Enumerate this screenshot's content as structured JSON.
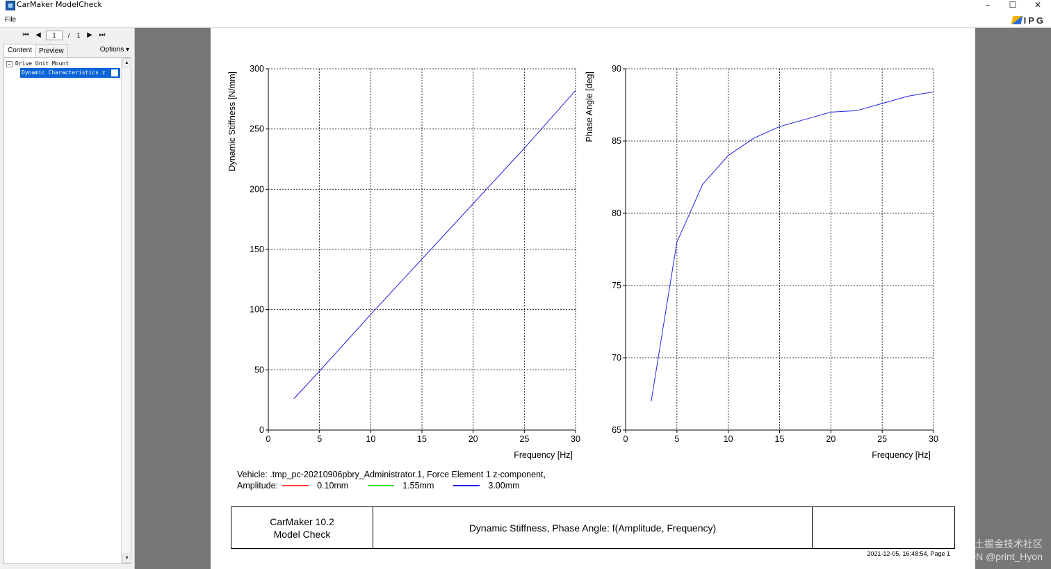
{
  "window": {
    "title": "CarMaker ModelCheck",
    "minimize": "–",
    "maximize": "☐",
    "close": "✕"
  },
  "menu": {
    "file": "File",
    "logo_text": "IPG"
  },
  "toolbar": {
    "first": "⏮",
    "prev": "◀",
    "page": "1",
    "sep": "/",
    "total": "1",
    "next": "▶",
    "last": "⏭"
  },
  "tabs": {
    "content": "Content",
    "preview": "Preview",
    "options": "Options ▾"
  },
  "tree": {
    "root": "Drive Unit Mount",
    "expander": "−",
    "child": "Dynamic Characteristics  z",
    "scroll_up": "▲",
    "scroll_down": "▼"
  },
  "legend": {
    "line1": "Vehicle: .tmp_pc-20210906pbry_Administrator.1,  Force Element 1  z-component,",
    "amplitude_label": "Amplitude:",
    "items": [
      {
        "label": "0.10mm",
        "color": "#ff4040"
      },
      {
        "label": "1.55mm",
        "color": "#40e040"
      },
      {
        "label": "3.00mm",
        "color": "#2020e0"
      }
    ]
  },
  "title_block": {
    "left_line1": "CarMaker 10.2",
    "left_line2": "Model Check",
    "middle": "Dynamic Stiffness, Phase Angle: f(Amplitude, Frequency)",
    "right": ""
  },
  "footer": {
    "timestamp": "2021-12-05, 16:48:54, Page 1"
  },
  "watermark": {
    "line1": "@稀土掘金技术社区",
    "line2": "CSDN @print_Hyon"
  },
  "chart_data": [
    {
      "type": "line",
      "xlabel": "Frequency [Hz]",
      "ylabel": "Dynamic Stiffness [N/mm]",
      "xlim": [
        0,
        30
      ],
      "ylim": [
        0,
        300
      ],
      "xticks": [
        0,
        5,
        10,
        15,
        20,
        25,
        30
      ],
      "yticks": [
        0,
        50,
        100,
        150,
        200,
        250,
        300
      ],
      "grid": true,
      "series": [
        {
          "name": "3.00mm",
          "color": "#2020e0",
          "x": [
            2.5,
            5,
            10,
            15,
            20,
            25,
            30
          ],
          "y": [
            26,
            49,
            96,
            142,
            188,
            234,
            282
          ]
        }
      ]
    },
    {
      "type": "line",
      "xlabel": "Frequency [Hz]",
      "ylabel": "Phase Angle [deg]",
      "xlim": [
        0,
        30
      ],
      "ylim": [
        65,
        90
      ],
      "xticks": [
        0,
        5,
        10,
        15,
        20,
        25,
        30
      ],
      "yticks": [
        65,
        70,
        75,
        80,
        85,
        90
      ],
      "grid": true,
      "series": [
        {
          "name": "3.00mm",
          "color": "#2020e0",
          "x": [
            2.5,
            5,
            7.5,
            10,
            12.5,
            15,
            17.5,
            20,
            22.5,
            25,
            27.5,
            30
          ],
          "y": [
            67.0,
            78.0,
            82.0,
            84.0,
            85.2,
            86.0,
            86.5,
            87.0,
            87.1,
            87.6,
            88.1,
            88.4
          ]
        }
      ]
    }
  ]
}
